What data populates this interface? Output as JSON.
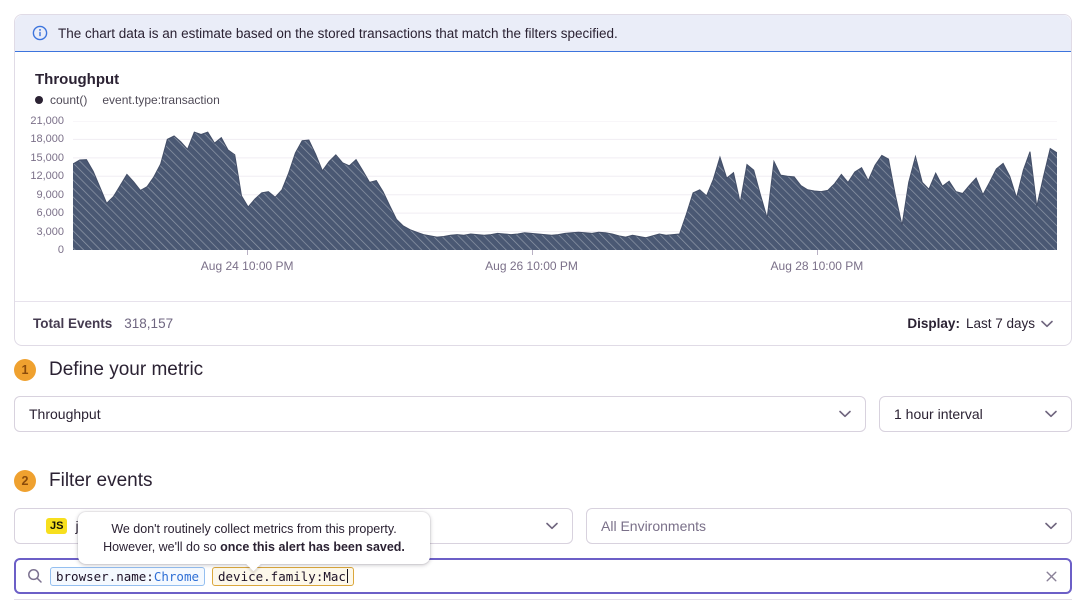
{
  "banner": {
    "text": "The chart data is an estimate based on the stored transactions that match the filters specified."
  },
  "chart_panel": {
    "title": "Throughput",
    "legend": {
      "series": "count()",
      "filter": "event.type:transaction"
    },
    "footer": {
      "total_label": "Total Events",
      "total_value": "318,157",
      "display_label": "Display:",
      "display_value": "Last 7 days"
    }
  },
  "chart_data": {
    "type": "area",
    "title": "Throughput",
    "ylabel": "count()",
    "ylim": [
      0,
      21000
    ],
    "grid": true,
    "legend_position": "top-left",
    "style": {
      "fill": "#4A5873",
      "stroke": "#434E67",
      "hatch": "diagonal",
      "grid_color": "#F0EDF3",
      "axis_text": "#7B7089"
    },
    "yticks": [
      {
        "value": 0,
        "label": "0"
      },
      {
        "value": 3000,
        "label": "3,000"
      },
      {
        "value": 6000,
        "label": "6,000"
      },
      {
        "value": 9000,
        "label": "9,000"
      },
      {
        "value": 12000,
        "label": "12,000"
      },
      {
        "value": 15000,
        "label": "15,000"
      },
      {
        "value": 18000,
        "label": "18,000"
      },
      {
        "value": 21000,
        "label": "21,000"
      }
    ],
    "xticks": [
      {
        "label": "Aug 24 10:00 PM",
        "pos": 0.177
      },
      {
        "label": "Aug 26 10:00 PM",
        "pos": 0.466
      },
      {
        "label": "Aug 28 10:00 PM",
        "pos": 0.756
      }
    ],
    "series": [
      {
        "name": "count() event.type:transaction",
        "interval": "1 hour",
        "values": [
          14000,
          14650,
          14700,
          12800,
          10200,
          7600,
          8700,
          10500,
          12300,
          11100,
          9700,
          10300,
          11900,
          14000,
          18000,
          18550,
          17600,
          16400,
          19200,
          18800,
          19200,
          17400,
          18300,
          16300,
          15500,
          8800,
          7000,
          8300,
          9300,
          9500,
          8600,
          9800,
          12500,
          15800,
          17800,
          17900,
          15600,
          12900,
          14400,
          15500,
          14200,
          13700,
          14700,
          12900,
          11000,
          11300,
          9500,
          7200,
          5000,
          3900,
          3300,
          2900,
          2500,
          2300,
          2100,
          2200,
          2400,
          2500,
          2400,
          2600,
          2500,
          2400,
          2500,
          2700,
          2600,
          2500,
          2600,
          2800,
          2700,
          2600,
          2500,
          2400,
          2500,
          2700,
          2800,
          2900,
          2800,
          2700,
          2900,
          2800,
          2600,
          2300,
          2100,
          2400,
          2200,
          2000,
          2300,
          2600,
          2400,
          2500,
          2600,
          5800,
          9300,
          9800,
          8800,
          11500,
          15100,
          11700,
          12600,
          7700,
          13900,
          13000,
          9000,
          5200,
          14400,
          12200,
          12000,
          11900,
          10500,
          9800,
          9600,
          9500,
          9700,
          10800,
          12300,
          11000,
          12700,
          13400,
          11300,
          13800,
          15400,
          14800,
          9000,
          4000,
          11000,
          15200,
          11000,
          9900,
          12500,
          10400,
          11200,
          9500,
          9200,
          10500,
          11700,
          9000,
          11000,
          13200,
          14100,
          12000,
          8500,
          13000,
          16000,
          7100,
          12000,
          16500,
          15800
        ]
      }
    ]
  },
  "steps": {
    "step1": {
      "number": "1",
      "title": "Define your metric",
      "metric": "Throughput",
      "interval": "1 hour interval"
    },
    "step2": {
      "number": "2",
      "title": "Filter events",
      "project_badge": "JS",
      "project": "javascript",
      "environment": "All Environments"
    }
  },
  "tooltip": {
    "line1": "We don't routinely collect metrics from this property.",
    "line2": "However, we'll do so ",
    "line2_bold": "once this alert has been saved."
  },
  "search": {
    "tokens": [
      {
        "key": "browser.name:",
        "value": "Chrome",
        "style": "blue"
      },
      {
        "key": "device.family:",
        "value": "Mac",
        "style": "amber"
      }
    ]
  },
  "colors": {
    "accent_purple": "#6C5FC7",
    "banner_blue": "#3C74DD",
    "step_badge_amber": "#EFA12F",
    "js_yellow": "#F7DF1E",
    "token_blue_border": "#94BFF0",
    "token_amber_border": "#DBA73C",
    "chart_fill": "#4A5873"
  }
}
